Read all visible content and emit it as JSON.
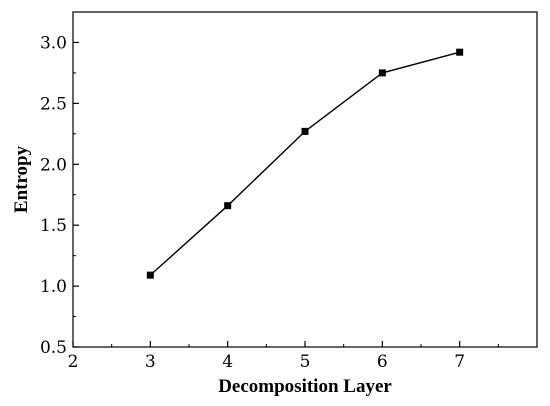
{
  "chart_data": {
    "type": "line",
    "title": "",
    "xlabel": "Decomposition Layer",
    "ylabel": "Entropy",
    "xlim": [
      2,
      8
    ],
    "ylim": [
      0.5,
      3.25
    ],
    "x_ticks": [
      2,
      3,
      4,
      5,
      6,
      7
    ],
    "x_tick_labels": [
      "2",
      "3",
      "4",
      "5",
      "6",
      "7"
    ],
    "y_ticks": [
      0.5,
      1.0,
      1.5,
      2.0,
      2.5,
      3.0
    ],
    "y_tick_labels": [
      "0.5",
      "1.0",
      "1.5",
      "2.0",
      "2.5",
      "3.0"
    ],
    "grid": false,
    "legend": "none",
    "series": [
      {
        "x": [
          3,
          4,
          5,
          6,
          7
        ],
        "y": [
          1.09,
          1.66,
          2.27,
          2.75,
          2.92
        ],
        "color": "#000000",
        "marker": "square"
      }
    ]
  }
}
